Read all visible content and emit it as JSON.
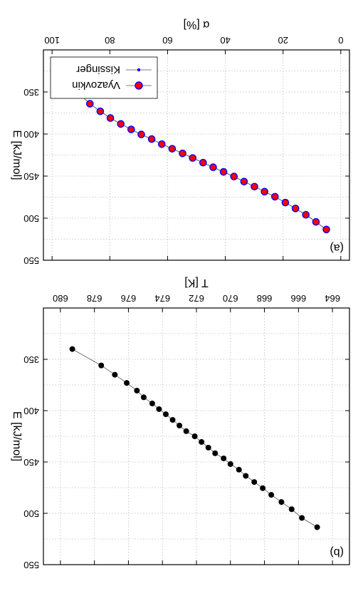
{
  "chart_data": [
    {
      "type": "scatter",
      "panel_label": "(b)",
      "xlabel": "T [K]",
      "ylabel": "E [kJ/mol]",
      "xlim": [
        663,
        681
      ],
      "ylim": [
        300,
        550
      ],
      "xticks": [
        "664",
        "666",
        "668",
        "670",
        "672",
        "674",
        "676",
        "678",
        "680"
      ],
      "yticks": [
        "350",
        "400",
        "450",
        "500",
        "550"
      ],
      "grid": true,
      "series": [
        {
          "color": "#000000",
          "x": [
            664.9,
            665.8,
            666.4,
            667.0,
            667.6,
            668.1,
            668.6,
            669.1,
            669.5,
            670.0,
            670.4,
            670.9,
            671.3,
            671.7,
            672.1,
            672.6,
            673.0,
            673.4,
            673.8,
            674.2,
            674.6,
            675.1,
            675.5,
            676.1,
            676.8,
            677.6,
            679.3
          ],
          "y": [
            513.5,
            504.5,
            496.0,
            489.0,
            482.0,
            475.5,
            469.5,
            463.5,
            457.5,
            452.0,
            446.5,
            441.5,
            436.0,
            430.5,
            425.0,
            420.0,
            414.5,
            409.0,
            403.5,
            398.5,
            393.0,
            387.0,
            380.5,
            373.0,
            365.0,
            356.0,
            340.0
          ]
        }
      ]
    },
    {
      "type": "line",
      "panel_label": "(a)",
      "xlabel": "α [%]",
      "ylabel": "E [kJ/mol]",
      "xlim": [
        -3,
        103
      ],
      "ylim": [
        300,
        550
      ],
      "xticks": [
        "0",
        "20",
        "40",
        "60",
        "80",
        "100"
      ],
      "yticks": [
        "350",
        "400",
        "450",
        "500",
        "550"
      ],
      "grid": true,
      "legend": "bottom-right",
      "series": [
        {
          "name": "Kissinger",
          "color": "#0000ff",
          "marker": "small-dot",
          "x": [
            5,
            8.6,
            12.1,
            15.7,
            19.2,
            22.8,
            26.4,
            29.9,
            33.5,
            37.0,
            40.6,
            44.2,
            47.7,
            51.3,
            54.8,
            58.4,
            62.0,
            65.5,
            69.1,
            72.6,
            76.2,
            79.8,
            83.3,
            86.9,
            90.4,
            95.0
          ],
          "y": [
            513.5,
            504.5,
            496.0,
            488.5,
            481.5,
            474.5,
            468.5,
            462.5,
            456.5,
            450.5,
            445.0,
            439.5,
            434.0,
            428.5,
            423.0,
            417.5,
            412.0,
            406.0,
            400.5,
            394.5,
            388.0,
            381.0,
            373.0,
            364.0,
            353.0,
            331.0
          ]
        },
        {
          "name": "Vyazovkin",
          "color": "#ff0000",
          "edge_color": "#0000ff",
          "marker": "large-dot",
          "x": [
            5,
            8.6,
            12.1,
            15.7,
            19.2,
            22.8,
            26.4,
            29.9,
            33.5,
            37.0,
            40.6,
            44.2,
            47.7,
            51.3,
            54.8,
            58.4,
            62.0,
            65.5,
            69.1,
            72.6,
            76.2,
            79.8,
            83.3,
            86.9,
            90.4,
            95.0
          ],
          "y": [
            513.5,
            504.5,
            496.0,
            488.5,
            481.5,
            474.5,
            468.5,
            462.5,
            456.5,
            450.5,
            445.0,
            439.5,
            434.0,
            428.5,
            423.0,
            417.5,
            412.0,
            406.0,
            400.5,
            394.5,
            388.0,
            381.0,
            373.0,
            364.0,
            353.0,
            331.0
          ]
        }
      ]
    }
  ]
}
